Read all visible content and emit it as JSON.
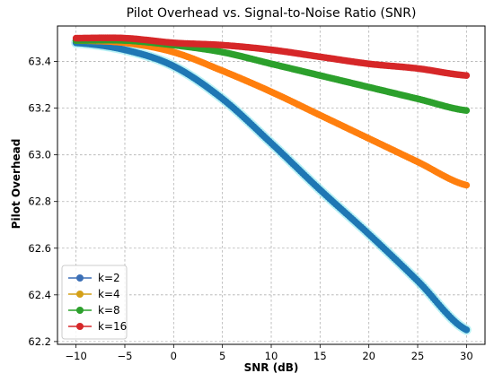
{
  "chart_data": {
    "type": "line",
    "title": "Pilot Overhead vs. Signal-to-Noise Ratio (SNR)",
    "xlabel": "SNR (dB)",
    "ylabel": "Pilot Overhead",
    "xlim": [
      -11.9,
      31.9
    ],
    "ylim": [
      62.188,
      63.552
    ],
    "xticks": [
      -10,
      -5,
      0,
      5,
      10,
      15,
      20,
      25,
      30
    ],
    "xtick_labels": [
      "−10",
      "−5",
      "0",
      "5",
      "10",
      "15",
      "20",
      "25",
      "30"
    ],
    "yticks": [
      62.2,
      62.4,
      62.6,
      62.8,
      63.0,
      63.2,
      63.4
    ],
    "ytick_labels": [
      "62.2",
      "62.4",
      "62.6",
      "62.8",
      "63.0",
      "63.2",
      "63.4"
    ],
    "grid": true,
    "legend_position": "lower-left",
    "x": [
      -10,
      -5,
      0,
      5,
      10,
      15,
      20,
      25,
      30
    ],
    "series": [
      {
        "name": "k=2",
        "color": "#1f77b4",
        "values": [
          63.48,
          63.45,
          63.38,
          63.24,
          63.05,
          62.85,
          62.66,
          62.46,
          62.25
        ]
      },
      {
        "name": "k=4",
        "color": "#ff7f0e",
        "values": [
          63.49,
          63.48,
          63.44,
          63.36,
          63.27,
          63.17,
          63.07,
          62.97,
          62.87
        ]
      },
      {
        "name": "k=8",
        "color": "#2ca02c",
        "values": [
          63.49,
          63.49,
          63.47,
          63.44,
          63.39,
          63.34,
          63.29,
          63.24,
          63.19
        ]
      },
      {
        "name": "k=16",
        "color": "#d62728",
        "values": [
          63.5,
          63.5,
          63.48,
          63.47,
          63.45,
          63.42,
          63.39,
          63.37,
          63.34
        ]
      }
    ],
    "legend_entries": [
      {
        "name": "k=2",
        "color": "#3b6fb6"
      },
      {
        "name": "k=4",
        "color": "#d4a017"
      },
      {
        "name": "k=8",
        "color": "#2ca02c"
      },
      {
        "name": "k=16",
        "color": "#d62728"
      }
    ]
  }
}
